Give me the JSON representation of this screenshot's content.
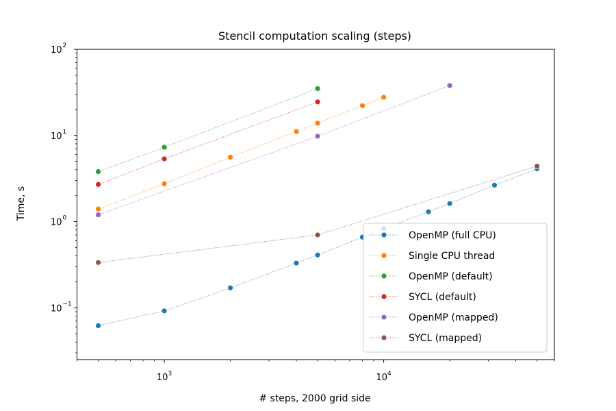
{
  "chart_data": {
    "type": "line",
    "title": "Stencil computation scaling (steps)",
    "xlabel": "# steps, 2000 grid side",
    "ylabel": "Time, s",
    "xscale": "log",
    "yscale": "log",
    "xlim": [
      400,
      60000
    ],
    "ylim": [
      0.025,
      100
    ],
    "x_ticks": [
      {
        "value": 1000,
        "base": "10",
        "exp": "3"
      },
      {
        "value": 10000,
        "base": "10",
        "exp": "4"
      }
    ],
    "y_ticks": [
      {
        "value": 0.1,
        "base": "10",
        "exp": "−1"
      },
      {
        "value": 1,
        "base": "10",
        "exp": "0"
      },
      {
        "value": 10,
        "base": "10",
        "exp": "1"
      },
      {
        "value": 100,
        "base": "10",
        "exp": "2"
      }
    ],
    "grid": false,
    "legend_position": "lower-right",
    "series": [
      {
        "name": "OpenMP (full CPU)",
        "color": "#1f77b4",
        "x": [
          500,
          1000,
          2000,
          4000,
          5000,
          8000,
          10000,
          16000,
          20000,
          32000,
          50000
        ],
        "y": [
          0.062,
          0.092,
          0.17,
          0.33,
          0.41,
          0.66,
          0.83,
          1.3,
          1.62,
          2.65,
          4.1
        ]
      },
      {
        "name": "Single CPU thread",
        "color": "#ff7f0e",
        "x": [
          500,
          1000,
          2000,
          4000,
          5000,
          8000,
          10000
        ],
        "y": [
          1.4,
          2.75,
          5.6,
          11.1,
          13.9,
          22.2,
          27.8
        ]
      },
      {
        "name": "OpenMP (default)",
        "color": "#2ca02c",
        "x": [
          500,
          1000,
          5000
        ],
        "y": [
          3.8,
          7.3,
          35.0
        ]
      },
      {
        "name": "SYCL (default)",
        "color": "#d62728",
        "x": [
          500,
          1000,
          5000
        ],
        "y": [
          2.7,
          5.35,
          24.5
        ]
      },
      {
        "name": "OpenMP (mapped)",
        "color": "#9467bd",
        "x": [
          500,
          5000,
          20000
        ],
        "y": [
          1.2,
          9.8,
          38.0
        ]
      },
      {
        "name": "SYCL (mapped)",
        "color": "#8c564b",
        "x": [
          500,
          5000,
          50000
        ],
        "y": [
          0.335,
          0.7,
          4.4
        ]
      }
    ]
  }
}
